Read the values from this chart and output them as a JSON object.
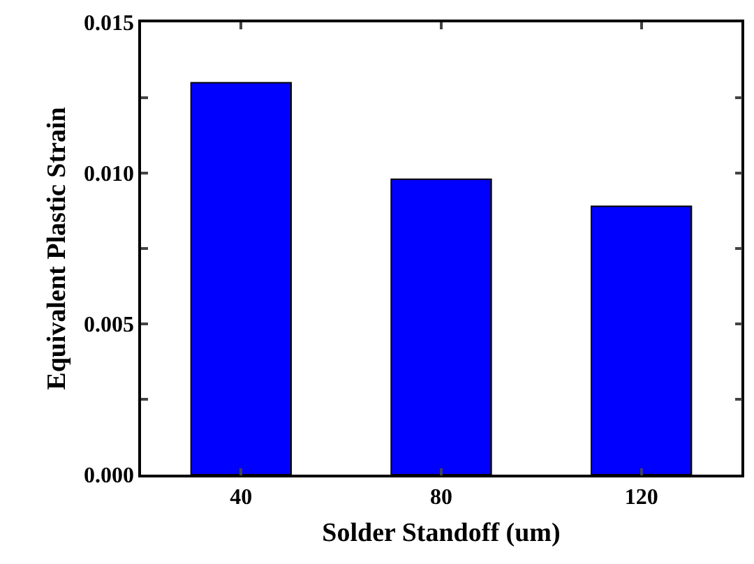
{
  "chart_data": {
    "type": "bar",
    "xlabel": "Solder Standoff (um)",
    "ylabel": "Equivalent Plastic Strain",
    "categories": [
      "40",
      "80",
      "120"
    ],
    "values": [
      0.013,
      0.0098,
      0.0089
    ],
    "color": "#0000ff",
    "ylim": [
      0,
      0.015
    ],
    "yticks": [
      {
        "value": 0,
        "label": "0.000"
      },
      {
        "value": 0.0025,
        "label": null
      },
      {
        "value": 0.005,
        "label": "0.005"
      },
      {
        "value": 0.0075,
        "label": null
      },
      {
        "value": 0.01,
        "label": "0.010"
      },
      {
        "value": 0.0125,
        "label": null
      },
      {
        "value": 0.015,
        "label": "0.015"
      }
    ],
    "grid": false,
    "legend": false
  }
}
